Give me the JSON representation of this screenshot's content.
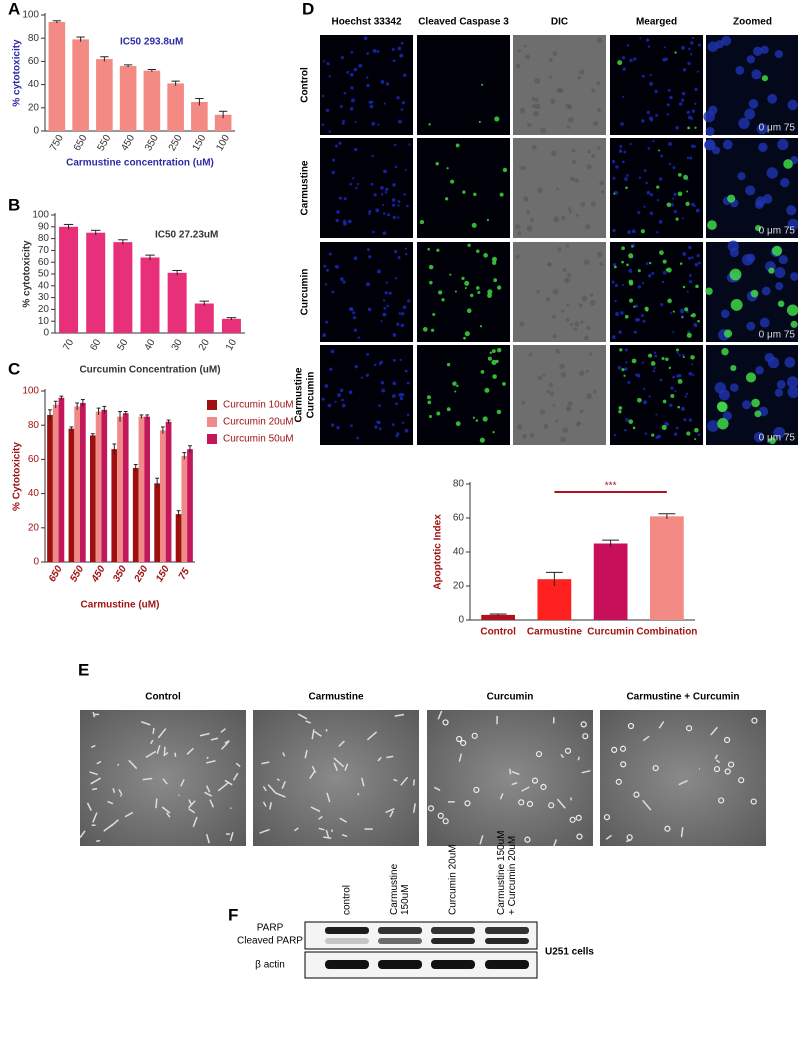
{
  "chart_data": [
    {
      "type": "bar",
      "panel_label": "A",
      "annotation": "IC50  293.8uM",
      "ylabel": "% cytotoxicity",
      "xlabel": "Carmustine concentration (uM)",
      "text_color": "#2b2ba6",
      "categories": [
        "750",
        "650",
        "550",
        "450",
        "350",
        "250",
        "150",
        "100"
      ],
      "values": [
        94,
        79,
        62,
        56,
        52,
        41,
        25,
        14
      ],
      "errors": [
        1,
        2,
        2,
        1,
        1,
        2,
        3,
        3
      ],
      "color": "#f48a84",
      "ylim": [
        0,
        100
      ],
      "yticks": [
        0,
        20,
        40,
        60,
        80,
        100
      ]
    },
    {
      "type": "bar",
      "panel_label": "B",
      "annotation": "IC50  27.23uM",
      "ylabel": "% cytotoxicity",
      "xlabel": "Curcumin Concentration (uM)",
      "text_color": "#333333",
      "categories": [
        "70",
        "60",
        "50",
        "40",
        "30",
        "20",
        "10"
      ],
      "values": [
        90,
        85,
        77,
        64,
        51,
        25,
        12
      ],
      "errors": [
        2,
        2,
        2,
        2,
        2,
        2,
        1
      ],
      "color": "#e8307a",
      "ylim": [
        0,
        100
      ],
      "yticks": [
        0,
        10,
        20,
        30,
        40,
        50,
        60,
        70,
        80,
        90,
        100
      ]
    },
    {
      "type": "grouped_bar",
      "panel_label": "C",
      "ylabel": "% Cytotoxicity",
      "xlabel": "Carmustine (uM)",
      "text_color": "#a01414",
      "categories": [
        "650",
        "550",
        "450",
        "350",
        "250",
        "150",
        "75"
      ],
      "series": [
        {
          "name": "Curcumin 10uM",
          "color": "#9e1010",
          "values": [
            86,
            78,
            74,
            66,
            55,
            46,
            28
          ],
          "errors": [
            3,
            1,
            1,
            3,
            2,
            3,
            2
          ]
        },
        {
          "name": "Curcumin 20uM",
          "color": "#f08a88",
          "values": [
            92,
            91,
            88,
            85,
            85,
            77,
            62
          ],
          "errors": [
            2,
            2,
            2,
            3,
            1,
            2,
            2
          ]
        },
        {
          "name": "Curcumin 50uM",
          "color": "#c2185b",
          "values": [
            96,
            93,
            89,
            87,
            85,
            82,
            66
          ],
          "errors": [
            1,
            2,
            2,
            1,
            1,
            1,
            2
          ]
        }
      ],
      "ylim": [
        0,
        100
      ],
      "yticks": [
        0,
        20,
        40,
        60,
        80,
        100
      ]
    },
    {
      "type": "bar",
      "ylabel": "Apoptotic Index",
      "annotation": "***",
      "text_color": "#a01414",
      "categories": [
        "Control",
        "Carmustine",
        "Curcumin",
        "Combination"
      ],
      "values": [
        3,
        24,
        45,
        61
      ],
      "errors": [
        0.5,
        4,
        2,
        1.5
      ],
      "colors": [
        "#b01020",
        "#ff2020",
        "#c8105a",
        "#f48a84"
      ],
      "ylim": [
        0,
        80
      ],
      "yticks": [
        0,
        20,
        40,
        60,
        80
      ]
    }
  ],
  "panel_d": {
    "label": "D",
    "columns": [
      "Hoechst 33342",
      "Cleaved Caspase 3",
      "DIC",
      "Mearged",
      "Zoomed"
    ],
    "rows": [
      [
        "Control"
      ],
      [
        "Carmustine"
      ],
      [
        "Curcumin"
      ],
      [
        "Carmustine",
        "Curcumin"
      ]
    ],
    "scale_label": "0   μm   75"
  },
  "panel_e": {
    "label": "E",
    "titles": [
      "Control",
      "Carmustine",
      "Curcumin",
      "Carmustine + Curcumin"
    ]
  },
  "panel_f": {
    "label": "F",
    "lanes": [
      [
        "control"
      ],
      [
        "Carmustine",
        "150uM"
      ],
      [
        "Curcumin 20uM"
      ],
      [
        "Carmustine 150uM",
        "+ Curcumin 20uM"
      ]
    ],
    "bands": [
      "PARP",
      "Cleaved PARP",
      "β actin"
    ],
    "cell_line": "U251 cells"
  }
}
